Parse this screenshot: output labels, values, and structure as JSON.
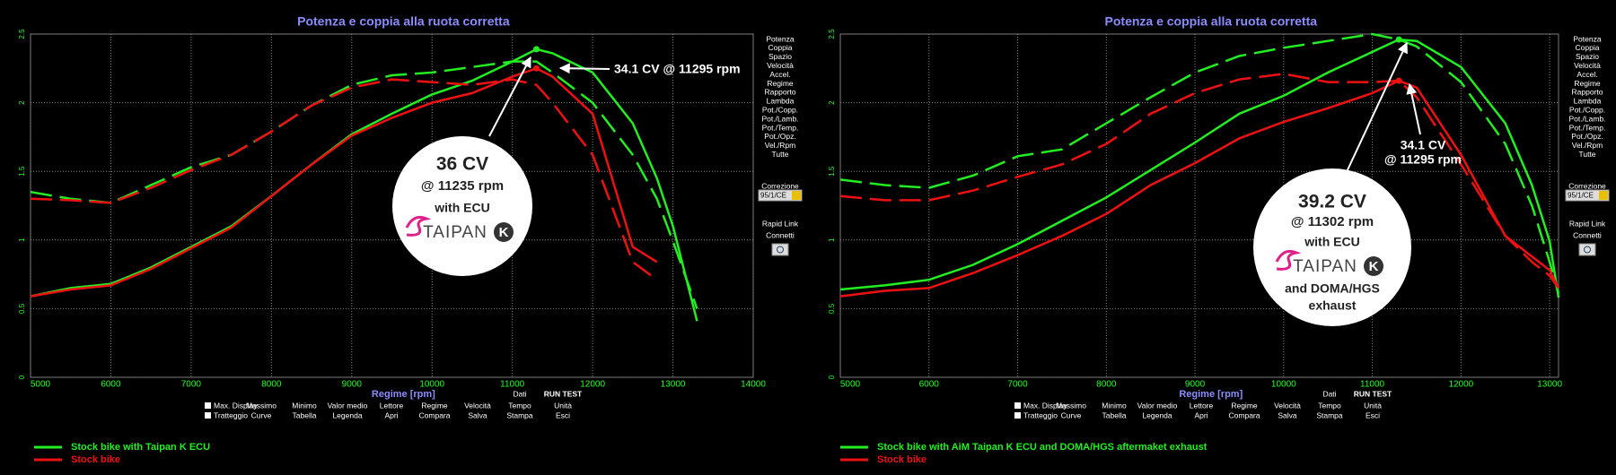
{
  "chart_data": [
    {
      "type": "line",
      "title": "Potenza e coppia alla ruota corretta",
      "x_label": "Regime [rpm]",
      "x": [
        5000,
        5500,
        6000,
        6500,
        7000,
        7500,
        8000,
        8500,
        9000,
        9500,
        10000,
        10500,
        11000,
        11300,
        11500,
        12000,
        12500,
        12800,
        13000,
        13300
      ],
      "xlim": [
        5000,
        14000
      ],
      "xticks": [
        5000,
        6000,
        7000,
        8000,
        9000,
        10000,
        11000,
        12000,
        13000,
        14000
      ],
      "ylim": [
        0,
        2.5
      ],
      "yticks": [
        0,
        0.5,
        1,
        1.5,
        2,
        2.5
      ],
      "grid": true,
      "series": [
        {
          "name": "Stock bike with Taipan K ECU",
          "color": "#22ee22",
          "values": [
            0.59,
            0.65,
            0.68,
            0.8,
            0.95,
            1.1,
            1.32,
            1.55,
            1.77,
            1.92,
            2.06,
            2.16,
            2.3,
            2.39,
            2.36,
            2.22,
            1.85,
            1.45,
            1.1,
            0.41
          ],
          "dashed_values": [
            1.35,
            1.3,
            1.27,
            1.4,
            1.53,
            1.62,
            1.79,
            1.98,
            2.13,
            2.2,
            2.22,
            2.26,
            2.3,
            2.3,
            2.22,
            2.0,
            1.62,
            1.3,
            0.99,
            0.5
          ]
        },
        {
          "name": "Stock bike",
          "color": "#ee1111",
          "values": [
            0.59,
            0.64,
            0.67,
            0.79,
            0.94,
            1.09,
            1.32,
            1.55,
            1.76,
            1.89,
            2.0,
            2.07,
            2.19,
            2.25,
            2.19,
            1.92,
            0.95,
            0.84,
            null,
            null
          ],
          "dashed_values": [
            1.3,
            1.29,
            1.27,
            1.38,
            1.51,
            1.62,
            1.79,
            1.98,
            2.11,
            2.17,
            2.15,
            2.13,
            2.17,
            2.13,
            2.0,
            1.62,
            0.84,
            0.71,
            null,
            null
          ]
        }
      ],
      "red_callout": [
        "34.1 CV @ 11295 rpm"
      ],
      "circle_lines": [
        "36 CV",
        "@ 11235 rpm",
        "with ECU"
      ],
      "circle_lines_after": []
    },
    {
      "type": "line",
      "title": "Potenza e coppia alla ruota corretta",
      "x_label": "Regime [rpm]",
      "x": [
        5000,
        5500,
        6000,
        6500,
        7000,
        7500,
        8000,
        8500,
        9000,
        9500,
        10000,
        10500,
        11000,
        11300,
        11500,
        12000,
        12500,
        12800,
        13000,
        13100
      ],
      "xlim": [
        5000,
        13100
      ],
      "xticks": [
        5000,
        6000,
        7000,
        8000,
        9000,
        10000,
        11000,
        12000,
        13000
      ],
      "ylim": [
        0,
        2.5
      ],
      "yticks": [
        0,
        0.5,
        1,
        1.5,
        2,
        2.5
      ],
      "grid": true,
      "series": [
        {
          "name": "Stock bike with AiM Taipan K ECU and DOMA/HGS aftermaket exhaust",
          "color": "#22ee22",
          "values": [
            0.64,
            0.67,
            0.71,
            0.82,
            0.97,
            1.14,
            1.31,
            1.51,
            1.71,
            1.92,
            2.05,
            2.22,
            2.37,
            2.46,
            2.45,
            2.26,
            1.85,
            1.4,
            0.99,
            0.58
          ],
          "dashed_values": [
            1.44,
            1.4,
            1.38,
            1.47,
            1.61,
            1.66,
            1.85,
            2.04,
            2.22,
            2.34,
            2.4,
            2.45,
            2.5,
            2.46,
            2.41,
            2.15,
            1.7,
            1.25,
            0.84,
            0.61
          ]
        },
        {
          "name": "Stock bike",
          "color": "#ee1111",
          "values": [
            0.59,
            0.63,
            0.65,
            0.76,
            0.89,
            1.03,
            1.19,
            1.4,
            1.56,
            1.74,
            1.86,
            1.96,
            2.07,
            2.16,
            2.11,
            1.62,
            1.03,
            0.88,
            0.78,
            0.65
          ],
          "dashed_values": [
            1.32,
            1.29,
            1.29,
            1.36,
            1.46,
            1.55,
            1.7,
            1.92,
            2.07,
            2.17,
            2.21,
            2.15,
            2.15,
            2.16,
            2.04,
            1.55,
            1.03,
            0.84,
            0.74,
            0.65
          ]
        }
      ],
      "red_callout": [
        "34.1 CV",
        "@ 11295 rpm"
      ],
      "circle_lines": [
        "39.2 CV",
        "@ 11302 rpm",
        "with ECU"
      ],
      "circle_lines_after": [
        "and DOMA/HGS",
        "exhaust"
      ]
    }
  ],
  "logo_text": "TAIPAN",
  "logo_mark": "K",
  "side_menu": {
    "items": [
      "Potenza",
      "Coppia",
      "Spazio",
      "Velocità",
      "Accel.",
      "Regime",
      "Rapporto",
      "Lambda",
      "Pot./Copp.",
      "Pot./Lamb.",
      "Pot./Temp.",
      "Pot./Opz.",
      "Vel./Rpm",
      "Tutte"
    ],
    "correction_label": "Correzione",
    "correction_value": "95/1/CE",
    "rapid_link": "Rapid Link",
    "connect": "Connetti"
  },
  "toolbar": {
    "checkboxes": [
      "Max. Display",
      "Tratteggio"
    ],
    "data_label": "Dati",
    "run_test": "RUN TEST",
    "top_row": [
      "Massimo",
      "Minimo",
      "Valor medio",
      "Lettore",
      "Regime",
      "Velocità",
      "Tempo",
      "Unità"
    ],
    "bottom_row": [
      "Curve",
      "Tabella",
      "Legenda",
      "Apri",
      "Compara",
      "Salva",
      "Stampa",
      "Esci"
    ]
  }
}
